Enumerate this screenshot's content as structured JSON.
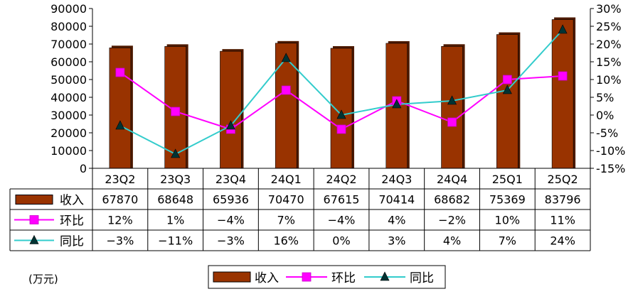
{
  "unit_label": "(万元)",
  "chart_data": {
    "type": "bar",
    "categories": [
      "23Q2",
      "23Q3",
      "23Q4",
      "24Q1",
      "24Q2",
      "24Q3",
      "24Q4",
      "25Q1",
      "25Q2"
    ],
    "series": [
      {
        "name": "收入",
        "kind": "bar",
        "axis": "left",
        "values": [
          67870,
          68648,
          65936,
          70470,
          67615,
          70414,
          68682,
          75369,
          83796
        ],
        "labels": [
          "67870",
          "68648",
          "65936",
          "70470",
          "67615",
          "70414",
          "68682",
          "75369",
          "83796"
        ],
        "color": "#993300"
      },
      {
        "name": "环比",
        "kind": "line",
        "marker": "square",
        "axis": "right",
        "values": [
          12,
          1,
          -4,
          7,
          -4,
          4,
          -2,
          10,
          11
        ],
        "labels": [
          "12%",
          "1%",
          "−4%",
          "7%",
          "−4%",
          "4%",
          "−2%",
          "10%",
          "11%"
        ],
        "color": "#FF00FF"
      },
      {
        "name": "同比",
        "kind": "line",
        "marker": "triangle",
        "axis": "right",
        "values": [
          -3,
          -11,
          -3,
          16,
          0,
          3,
          4,
          7,
          24
        ],
        "labels": [
          "−3%",
          "−11%",
          "−3%",
          "16%",
          "0%",
          "3%",
          "4%",
          "7%",
          "24%"
        ],
        "color": "#33CCCC"
      }
    ],
    "left_axis": {
      "ylim": [
        0,
        90000
      ],
      "ticks": [
        "0",
        "10000",
        "20000",
        "30000",
        "40000",
        "50000",
        "60000",
        "70000",
        "80000",
        "90000"
      ]
    },
    "right_axis": {
      "ylim": [
        -15,
        30
      ],
      "ticks": [
        "-15%",
        "-10%",
        "-5%",
        "0%",
        "5%",
        "10%",
        "15%",
        "20%",
        "25%",
        "30%"
      ]
    },
    "grid": false,
    "legend": "bottom",
    "data_table": true
  }
}
